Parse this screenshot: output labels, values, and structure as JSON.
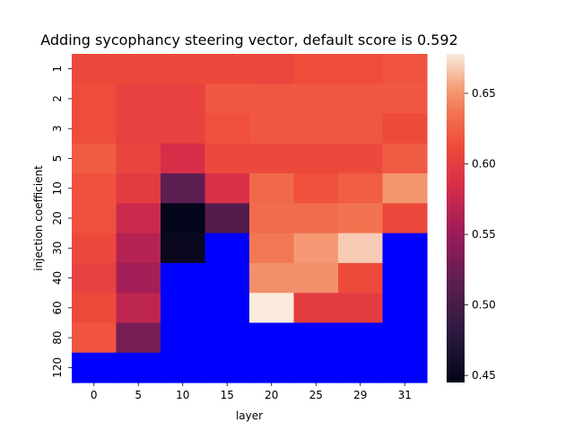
{
  "chart_data": {
    "type": "heatmap",
    "title": "Adding sycophancy steering vector, default score is 0.592",
    "xlabel": "layer",
    "ylabel": "injection coefficient",
    "x": [
      "0",
      "5",
      "10",
      "15",
      "20",
      "25",
      "29",
      "31"
    ],
    "y": [
      "1",
      "2",
      "3",
      "5",
      "10",
      "20",
      "30",
      "40",
      "60",
      "80",
      "120"
    ],
    "missing_color": "#0000ff",
    "colormap": "rocket",
    "vmin": 0.445,
    "vmax": 0.678,
    "colorbar_ticks": [
      "0.45",
      "0.50",
      "0.55",
      "0.60",
      "0.65"
    ],
    "values": [
      [
        0.61,
        0.61,
        0.61,
        0.61,
        0.608,
        0.614,
        0.614,
        0.618
      ],
      [
        0.614,
        0.604,
        0.604,
        0.62,
        0.62,
        0.62,
        0.62,
        0.62
      ],
      [
        0.614,
        0.604,
        0.604,
        0.616,
        0.62,
        0.62,
        0.62,
        0.612
      ],
      [
        0.622,
        0.606,
        0.585,
        0.61,
        0.61,
        0.61,
        0.61,
        0.622
      ],
      [
        0.616,
        0.598,
        0.515,
        0.588,
        0.63,
        0.616,
        0.624,
        0.65
      ],
      [
        0.616,
        0.578,
        0.445,
        0.508,
        0.632,
        0.632,
        0.636,
        0.61
      ],
      [
        0.61,
        0.565,
        0.45,
        null,
        0.638,
        0.652,
        0.668,
        null
      ],
      [
        0.604,
        0.555,
        null,
        null,
        0.648,
        0.648,
        0.612,
        null
      ],
      [
        0.612,
        0.57,
        null,
        null,
        0.678,
        0.6,
        0.6,
        null
      ],
      [
        0.618,
        0.53,
        null,
        null,
        null,
        null,
        null,
        null
      ],
      [
        null,
        null,
        null,
        null,
        null,
        null,
        null,
        null
      ]
    ]
  }
}
